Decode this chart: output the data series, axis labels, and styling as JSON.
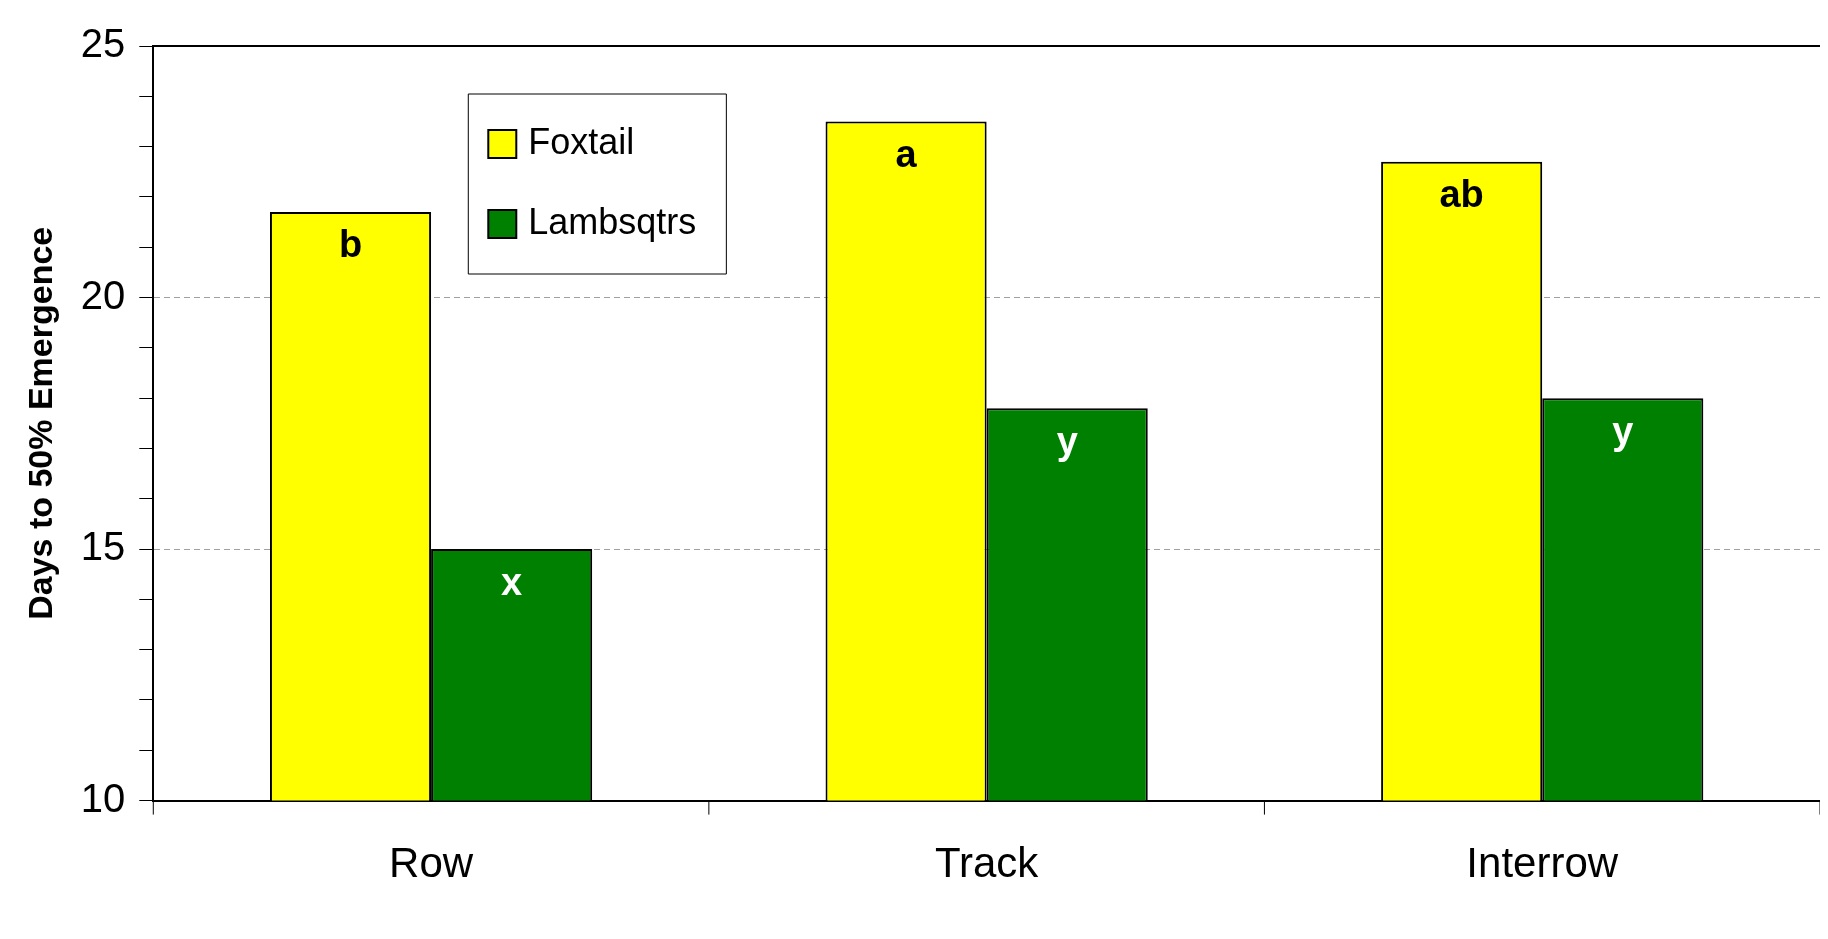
{
  "chart_data": {
    "type": "bar",
    "ylabel": "Days to 50% Emergence",
    "categories": [
      "Row",
      "Track",
      "Interrow"
    ],
    "series": [
      {
        "name": "Foxtail",
        "color": "#ffff00",
        "values": [
          21.7,
          23.5,
          22.7
        ]
      },
      {
        "name": "Lambsqtrs",
        "color": "#008000",
        "values": [
          15.0,
          17.8,
          18.0
        ]
      }
    ],
    "ylim": [
      10,
      25
    ],
    "yticks": [
      10,
      {
        "value": 11,
        "label": null
      },
      {
        "value": 12,
        "label": null
      },
      {
        "value": 13,
        "label": null
      },
      {
        "value": 14,
        "label": null
      },
      15,
      {
        "value": 16,
        "label": null
      },
      {
        "value": 17,
        "label": null
      },
      {
        "value": 18,
        "label": null
      },
      {
        "value": 19,
        "label": null
      },
      20,
      {
        "value": 21,
        "label": null
      },
      {
        "value": 22,
        "label": null
      },
      {
        "value": 23,
        "label": null
      },
      {
        "value": 24,
        "label": null
      },
      25
    ],
    "grid": "y",
    "legend": "top left",
    "annotations": [
      {
        "text": "b",
        "x": "Row",
        "y": 21.7
      },
      {
        "text": "a",
        "x": "Track",
        "y": 23.5
      },
      {
        "text": "ab",
        "x": "Interrow",
        "y": 22.7
      },
      {
        "text": "x",
        "x": "Row",
        "y": 15.0
      },
      {
        "text": "y",
        "x": "Track",
        "y": 17.8
      },
      {
        "text": "y",
        "x": "Interrow",
        "y": 18.0
      }
    ]
  }
}
